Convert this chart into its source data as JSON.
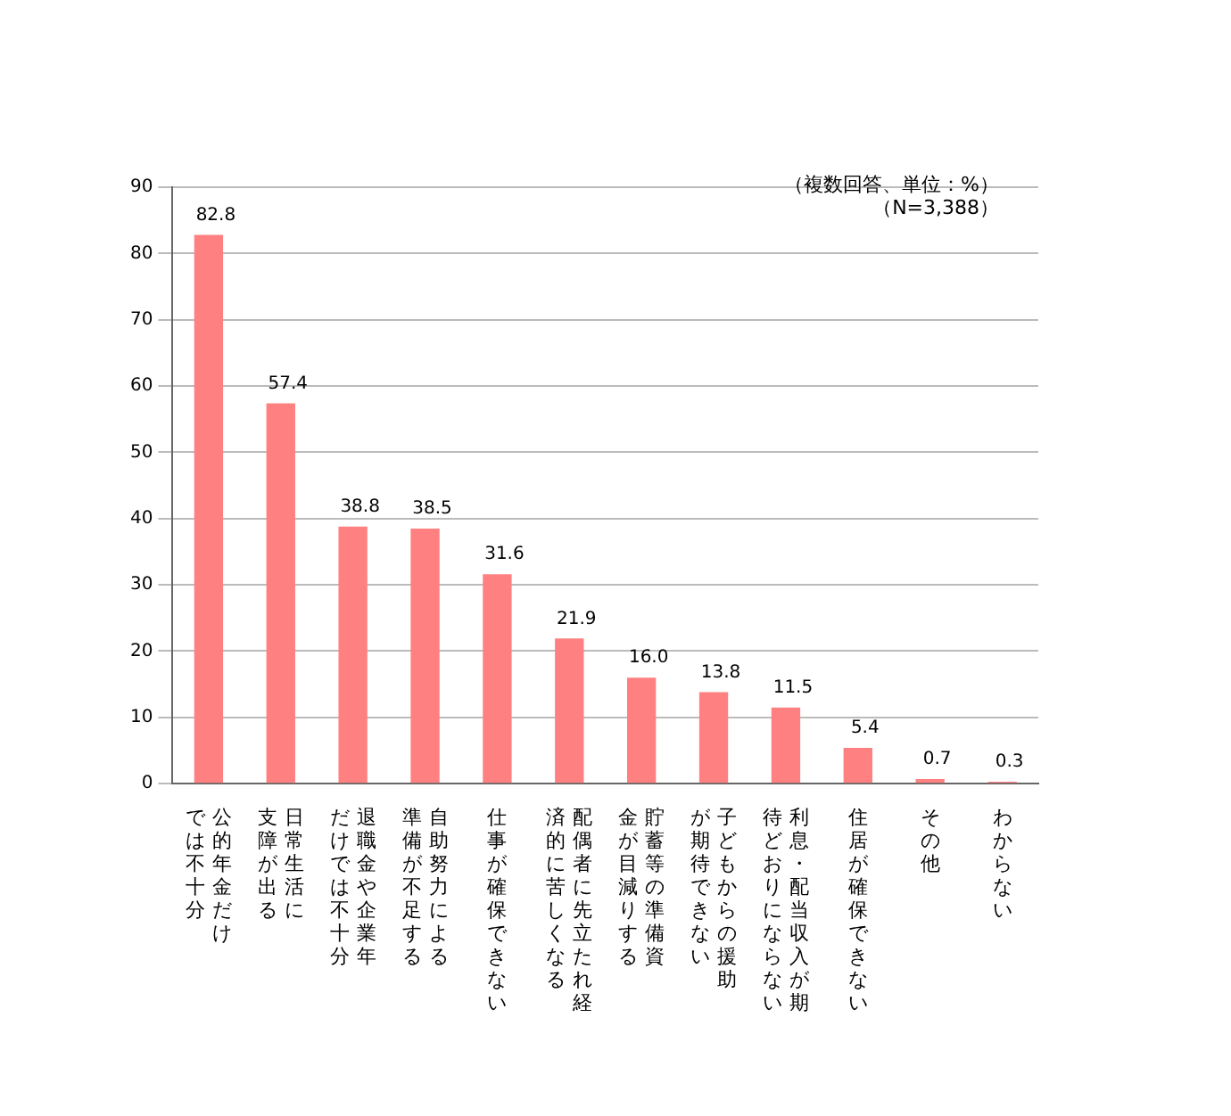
{
  "chart_data": {
    "type": "bar",
    "categories": [
      "公的年金だけでは不十分",
      "日常生活に支障が出る",
      "退職金や企業年だけでは不十分",
      "自助努力による準備が不足する",
      "仕事が確保できない",
      "配偶者に先立たれ経済的に苦しくなる",
      "貯蓄等の準備資金が目減りする",
      "子どもからの援助が期待できない",
      "利息・配当収入が期待どおりにならない",
      "住居が確保できない",
      "その他",
      "わからない"
    ],
    "values": [
      82.8,
      57.4,
      38.8,
      38.5,
      31.6,
      21.9,
      16.0,
      13.8,
      11.5,
      5.4,
      0.7,
      0.3
    ],
    "value_labels": [
      "82.8",
      "57.4",
      "38.8",
      "38.5",
      "31.6",
      "21.9",
      "16.0",
      "13.8",
      "11.5",
      "5.4",
      "0.7",
      "0.3"
    ],
    "color": "#ff8080",
    "ylim": [
      0,
      90
    ],
    "yticks": [
      0,
      10,
      20,
      30,
      40,
      50,
      60,
      70,
      80,
      90
    ],
    "grid": "y",
    "legend": false,
    "annotations": [
      "（複数回答、単位：%）",
      "（N=3,388）"
    ]
  }
}
